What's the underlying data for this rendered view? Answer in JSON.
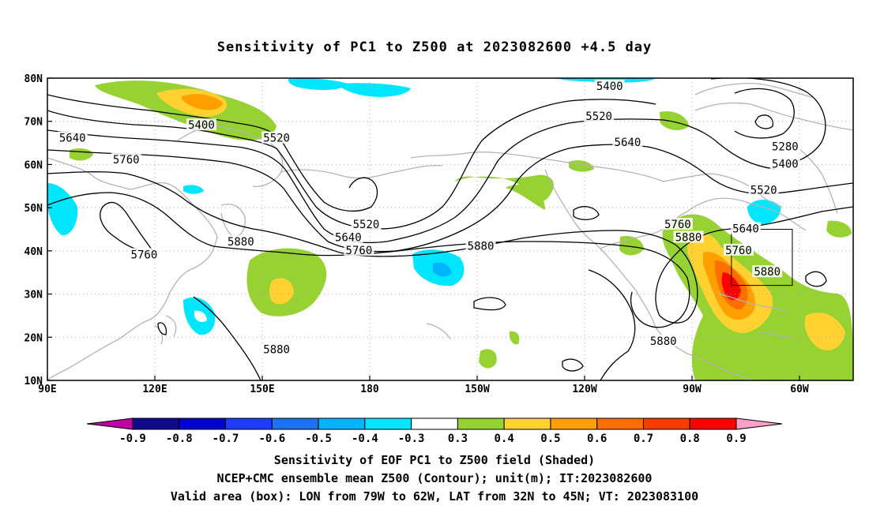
{
  "title": "Sensitivity of PC1 to Z500 at 2023082600 +4.5 day",
  "map": {
    "lat_ticks": [
      "80N",
      "70N",
      "60N",
      "50N",
      "40N",
      "30N",
      "20N",
      "10N"
    ],
    "lon_ticks": [
      "90E",
      "120E",
      "150E",
      "180",
      "150W",
      "120W",
      "90W",
      "60W"
    ],
    "lon_range": [
      90,
      315
    ],
    "lat_range": [
      10,
      80
    ],
    "valid_box": {
      "lon": [
        281,
        298
      ],
      "lat": [
        32,
        45
      ]
    }
  },
  "contours": {
    "labels": [
      {
        "text": "5400",
        "lon": 133,
        "lat": 69
      },
      {
        "text": "5520",
        "lon": 154,
        "lat": 66
      },
      {
        "text": "5640",
        "lon": 97,
        "lat": 66
      },
      {
        "text": "5760",
        "lon": 112,
        "lat": 61
      },
      {
        "text": "5760",
        "lon": 117,
        "lat": 39
      },
      {
        "text": "5880",
        "lon": 144,
        "lat": 42
      },
      {
        "text": "5880",
        "lon": 154,
        "lat": 17
      },
      {
        "text": "5520",
        "lon": 179,
        "lat": 46
      },
      {
        "text": "5640",
        "lon": 174,
        "lat": 43
      },
      {
        "text": "5760",
        "lon": 177,
        "lat": 40
      },
      {
        "text": "5880",
        "lon": 211,
        "lat": 41
      },
      {
        "text": "5400",
        "lon": 247,
        "lat": 78
      },
      {
        "text": "5520",
        "lon": 244,
        "lat": 71
      },
      {
        "text": "5640",
        "lon": 252,
        "lat": 65
      },
      {
        "text": "5760",
        "lon": 266,
        "lat": 46
      },
      {
        "text": "5880",
        "lon": 269,
        "lat": 43
      },
      {
        "text": "5880",
        "lon": 262,
        "lat": 19
      },
      {
        "text": "5280",
        "lon": 296,
        "lat": 64
      },
      {
        "text": "5400",
        "lon": 296,
        "lat": 60
      },
      {
        "text": "5520",
        "lon": 290,
        "lat": 54
      },
      {
        "text": "5640",
        "lon": 285,
        "lat": 45
      },
      {
        "text": "5760",
        "lon": 283,
        "lat": 40
      },
      {
        "text": "5880",
        "lon": 291,
        "lat": 35
      }
    ]
  },
  "colorbar": {
    "colors": [
      "#c000a0",
      "#0f0a8c",
      "#0000d2",
      "#1e3cff",
      "#1c73f0",
      "#00b4ff",
      "#00e6ff",
      "#ffffff",
      "#96d232",
      "#ffd232",
      "#ffa000",
      "#ff6e00",
      "#ff3c00",
      "#ff0000",
      "#ffa0c8"
    ],
    "labels": [
      "-0.9",
      "-0.8",
      "-0.7",
      "-0.6",
      "-0.5",
      "-0.4",
      "-0.3",
      "0.3",
      "0.4",
      "0.5",
      "0.6",
      "0.7",
      "0.8",
      "0.9"
    ]
  },
  "captions": {
    "line1": "Sensitivity of EOF PC1 to Z500 field (Shaded)",
    "line2": "NCEP+CMC ensemble mean Z500 (Contour); unit(m); IT:2023082600",
    "line3": "Valid area (box): LON from 79W to 62W, LAT from 32N to 45N; VT: 2023083100"
  }
}
